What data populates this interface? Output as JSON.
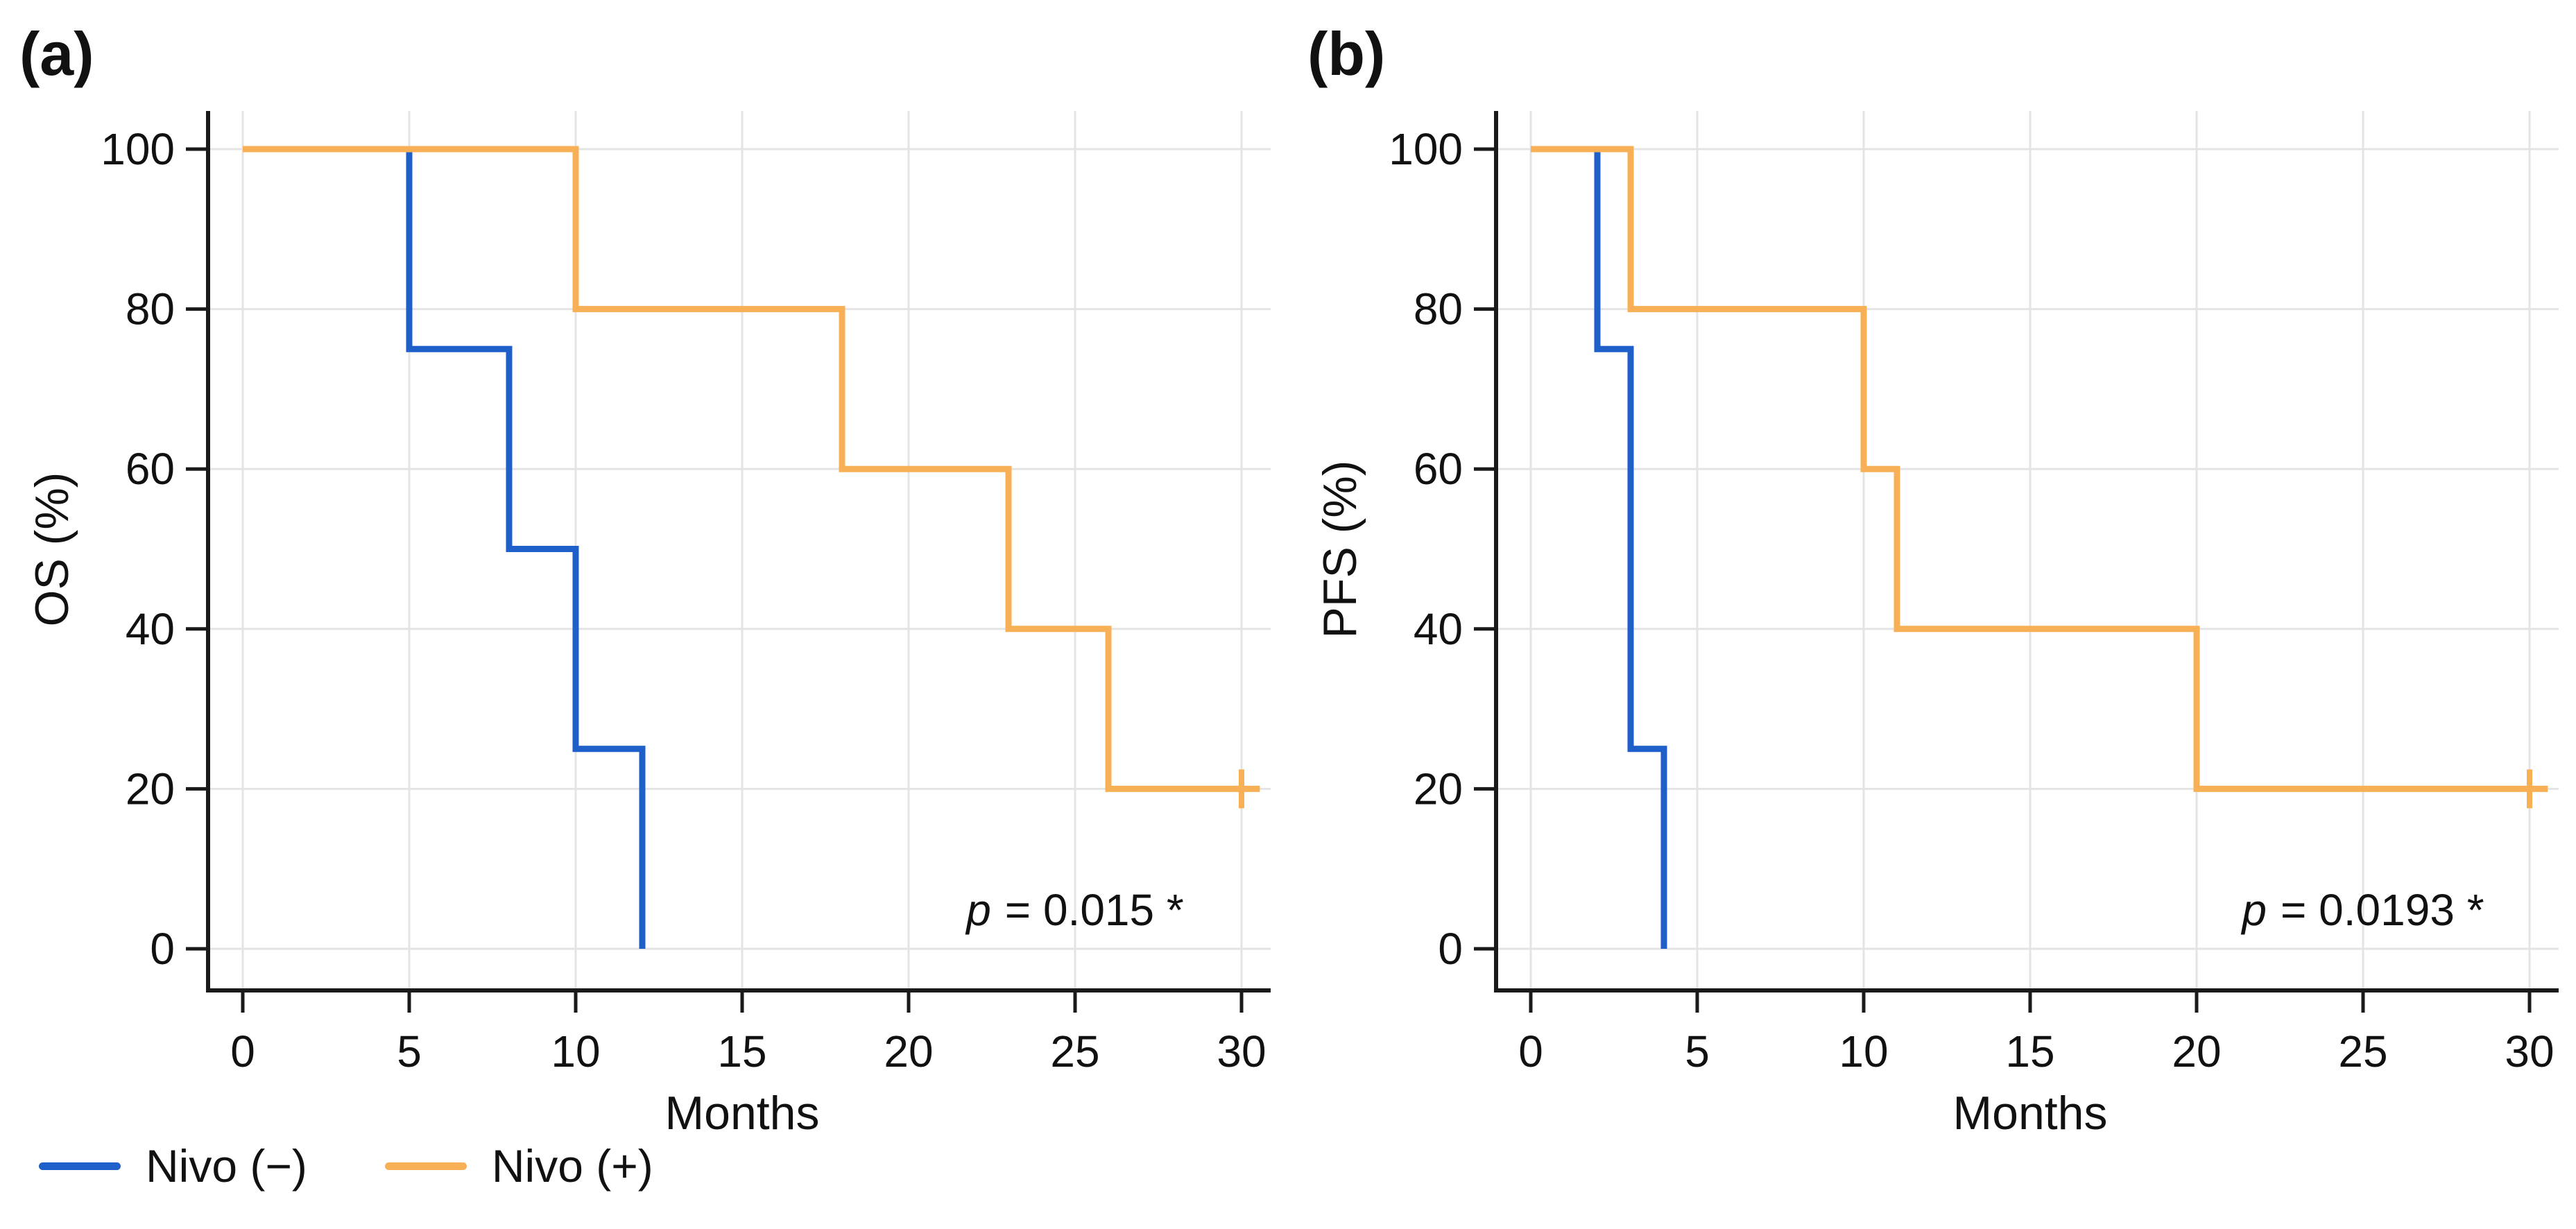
{
  "figure": {
    "background": "#ffffff",
    "accent_blue": "#1e5fc9",
    "accent_orange": "#f8b056",
    "gridline_color": "#e4e4e4",
    "axis_color": "#1a1a1a"
  },
  "legend": {
    "items": [
      {
        "key": "nivo-minus",
        "label": "Nivo (−)",
        "color": "#1e5fc9"
      },
      {
        "key": "nivo-plus",
        "label": "Nivo (+)",
        "color": "#f8b056"
      }
    ]
  },
  "chart_data": [
    {
      "type": "line",
      "subtype": "kaplan-meier-step",
      "panel_label": "(a)",
      "title": "",
      "xlabel": "Months",
      "ylabel": "OS (%)",
      "xlim": [
        0,
        30
      ],
      "ylim": [
        0,
        100
      ],
      "xticks": [
        0,
        5,
        10,
        15,
        20,
        25,
        30
      ],
      "yticks": [
        0,
        20,
        40,
        60,
        80,
        100
      ],
      "grid": true,
      "legend_position": "below-figure-left",
      "annotation": {
        "italic": "p",
        "text": "= 0.015 *"
      },
      "series": [
        {
          "key": "nivo-minus",
          "name": "Nivo (−)",
          "color": "#1e5fc9",
          "step_points": [
            [
              0,
              100
            ],
            [
              5,
              75
            ],
            [
              8,
              50
            ],
            [
              10,
              25
            ],
            [
              12,
              0
            ]
          ],
          "extend_to": null,
          "censored": []
        },
        {
          "key": "nivo-plus",
          "name": "Nivo (+)",
          "color": "#f8b056",
          "step_points": [
            [
              0,
              100
            ],
            [
              10,
              80
            ],
            [
              18,
              60
            ],
            [
              23,
              40
            ],
            [
              26,
              20
            ]
          ],
          "extend_to": 30.55,
          "censored": [
            [
              30,
              20
            ]
          ]
        }
      ]
    },
    {
      "type": "line",
      "subtype": "kaplan-meier-step",
      "panel_label": "(b)",
      "title": "",
      "xlabel": "Months",
      "ylabel": "PFS (%)",
      "xlim": [
        0,
        30
      ],
      "ylim": [
        0,
        100
      ],
      "xticks": [
        0,
        5,
        10,
        15,
        20,
        25,
        30
      ],
      "yticks": [
        0,
        20,
        40,
        60,
        80,
        100
      ],
      "grid": true,
      "legend_position": "none",
      "annotation": {
        "italic": "p",
        "text": "= 0.0193 *"
      },
      "series": [
        {
          "key": "nivo-minus",
          "name": "Nivo (−)",
          "color": "#1e5fc9",
          "step_points": [
            [
              0,
              100
            ],
            [
              2,
              75
            ],
            [
              3,
              25
            ],
            [
              4,
              0
            ]
          ],
          "extend_to": null,
          "censored": []
        },
        {
          "key": "nivo-plus",
          "name": "Nivo (+)",
          "color": "#f8b056",
          "step_points": [
            [
              0,
              100
            ],
            [
              3,
              80
            ],
            [
              10,
              60
            ],
            [
              11,
              40
            ],
            [
              20,
              20
            ]
          ],
          "extend_to": 30.55,
          "censored": [
            [
              30,
              20
            ]
          ]
        }
      ]
    }
  ]
}
